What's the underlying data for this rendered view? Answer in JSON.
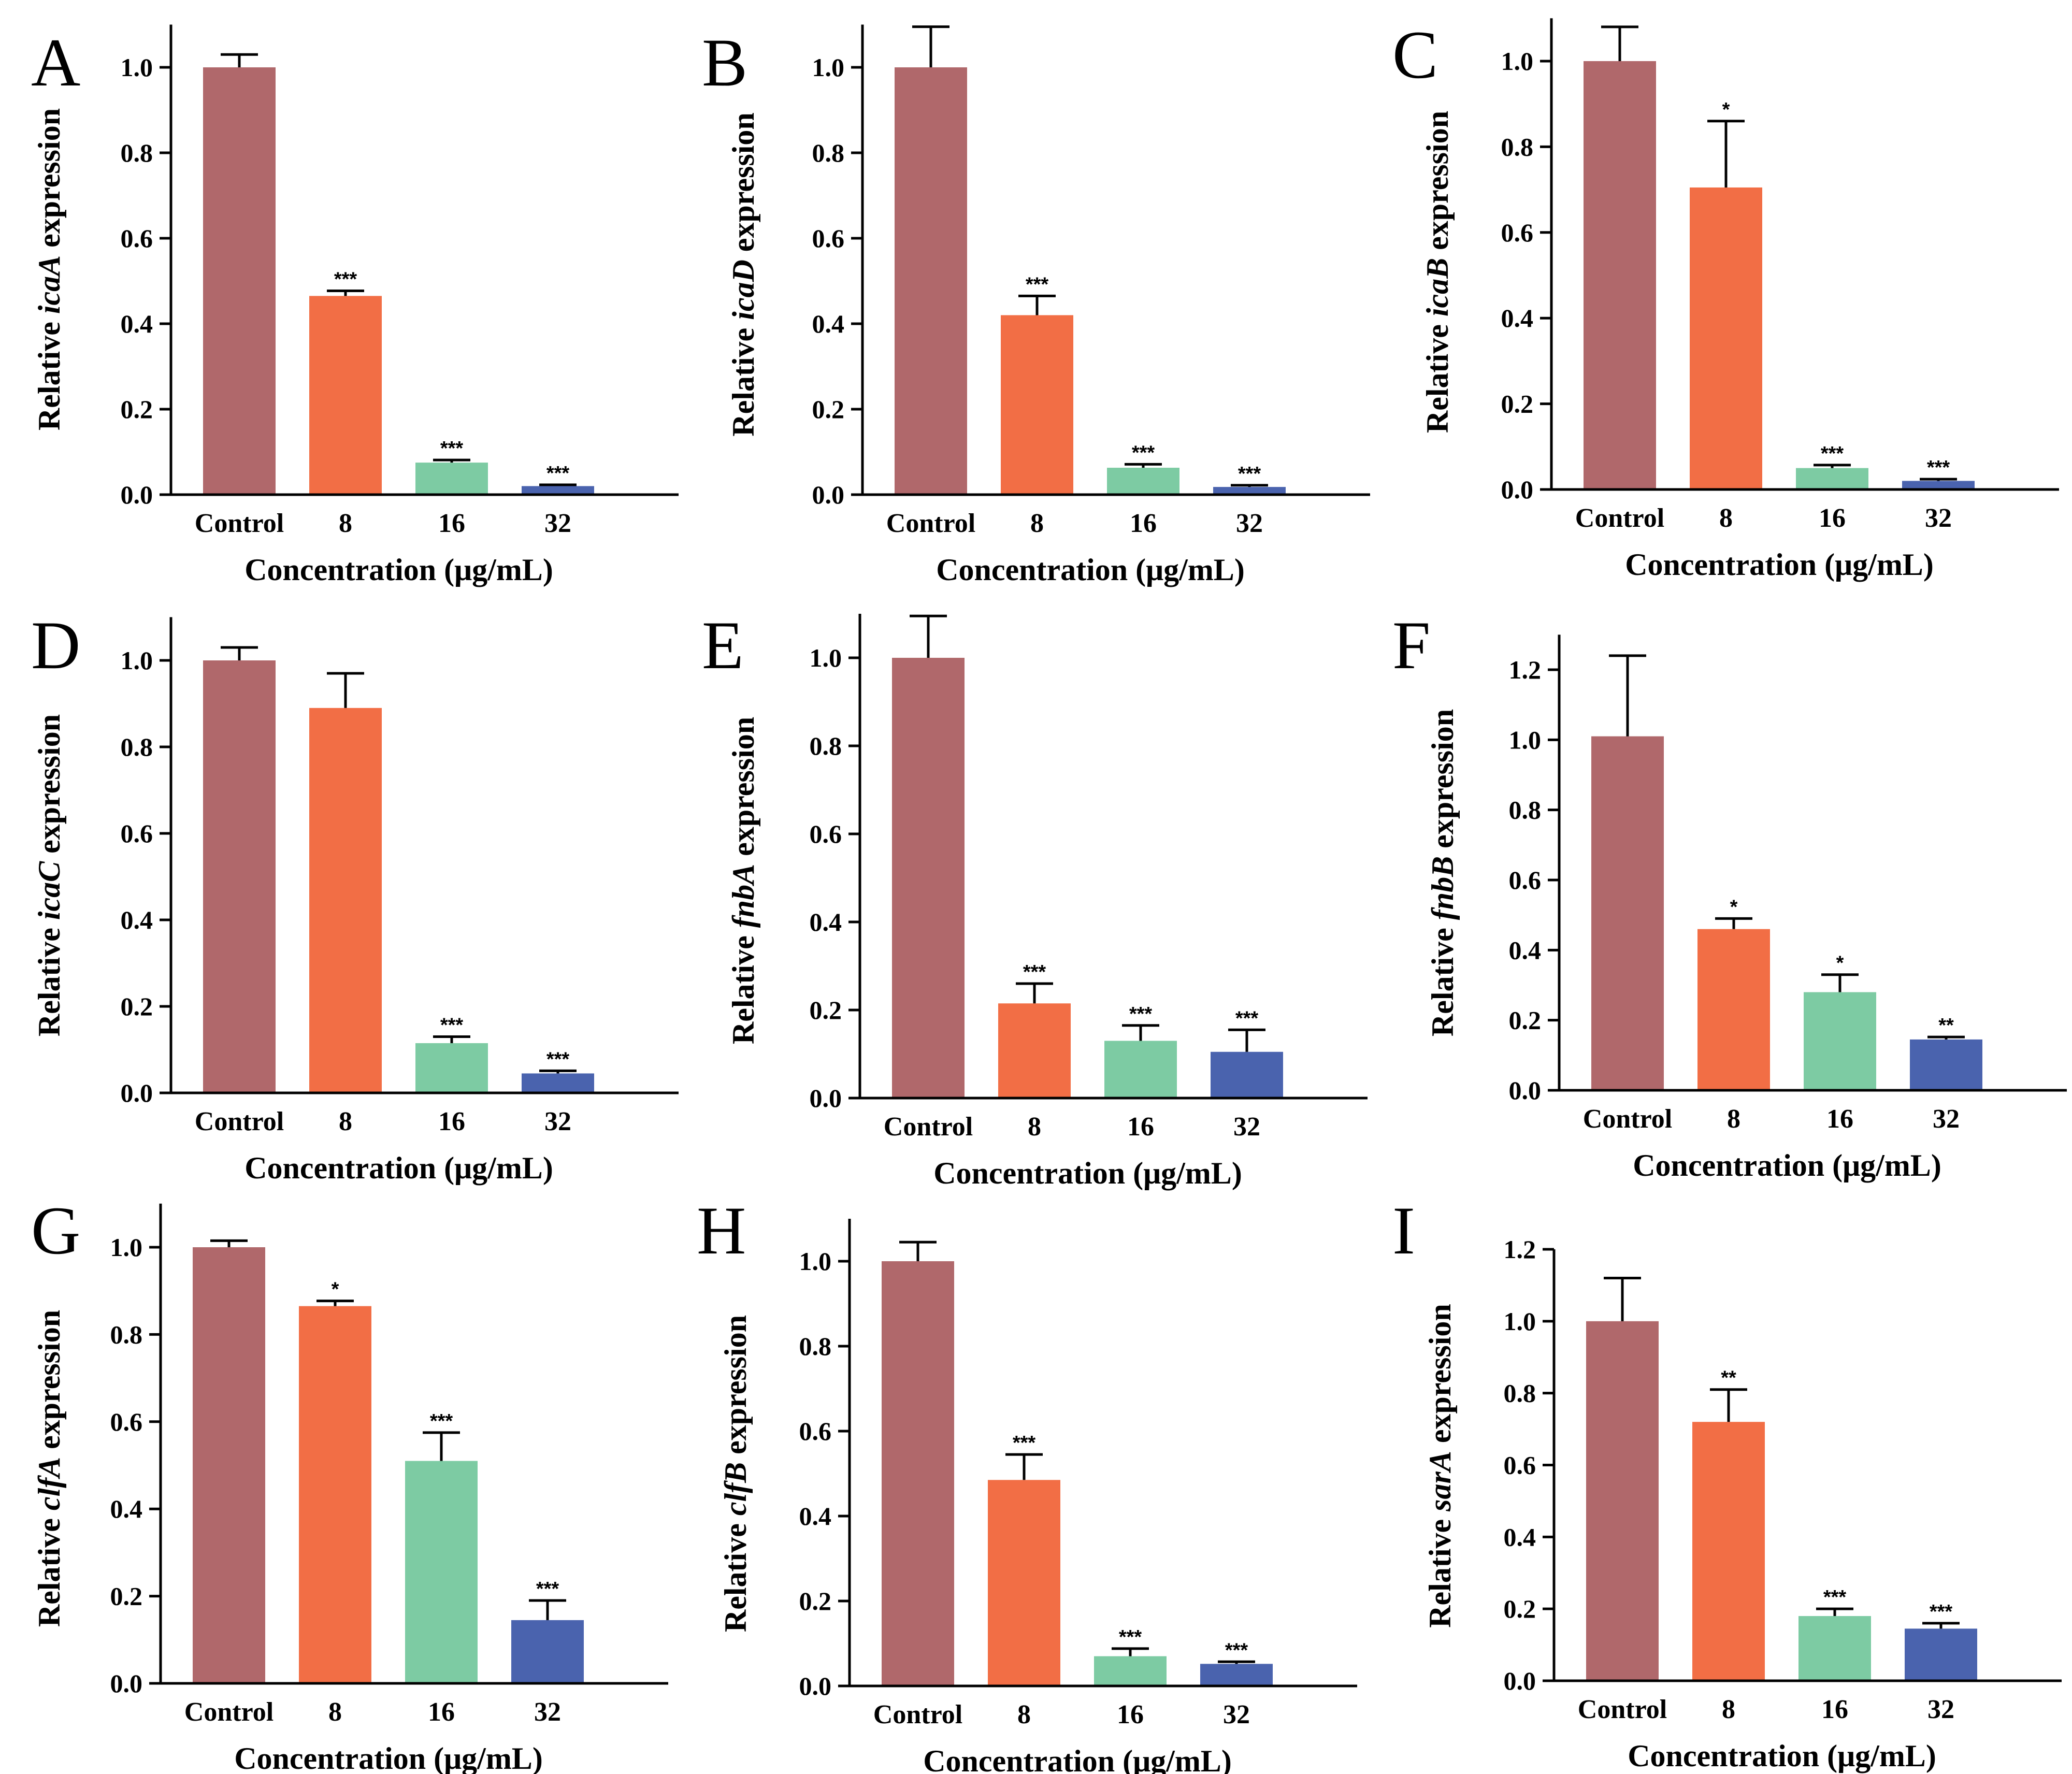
{
  "colors": {
    "control": "#B0686B",
    "c8": "#F26E45",
    "c16": "#7DCBA3",
    "c32": "#4A63AE"
  },
  "chart_data": [
    {
      "type": "bar",
      "panel": "A",
      "gene": "icaA",
      "ylabel_prefix": "Relative ",
      "ylabel_suffix": " expression",
      "xlabel": "Concentration (μg/mL)",
      "categories": [
        "Control",
        "8",
        "16",
        "32"
      ],
      "values": [
        1.0,
        0.465,
        0.075,
        0.02
      ],
      "errors": [
        0.03,
        0.012,
        0.006,
        0.003
      ],
      "significance": [
        "",
        "***",
        "***",
        "***"
      ],
      "ylim": [
        0,
        1.1
      ],
      "yticks": [
        "0.0",
        "0.2",
        "0.4",
        "0.6",
        "0.8",
        "1.0"
      ]
    },
    {
      "type": "bar",
      "panel": "B",
      "gene": "icaD",
      "ylabel_prefix": "Relative ",
      "ylabel_suffix": " expression",
      "xlabel": "Concentration (μg/mL)",
      "categories": [
        "Control",
        "8",
        "16",
        "32"
      ],
      "values": [
        1.0,
        0.42,
        0.063,
        0.018
      ],
      "errors": [
        0.095,
        0.045,
        0.008,
        0.004
      ],
      "significance": [
        "",
        "***",
        "***",
        "***"
      ],
      "ylim": [
        0,
        1.1
      ],
      "yticks": [
        "0.0",
        "0.2",
        "0.4",
        "0.6",
        "0.8",
        "1.0"
      ]
    },
    {
      "type": "bar",
      "panel": "C",
      "gene": "icaB",
      "ylabel_prefix": "Relative ",
      "ylabel_suffix": " expression",
      "xlabel": "Concentration (μg/mL)",
      "categories": [
        "Control",
        "8",
        "16",
        "32"
      ],
      "values": [
        1.0,
        0.705,
        0.05,
        0.02
      ],
      "errors": [
        0.08,
        0.155,
        0.007,
        0.004
      ],
      "significance": [
        "",
        "*",
        "***",
        "***"
      ],
      "ylim": [
        0,
        1.1
      ],
      "yticks": [
        "0.0",
        "0.2",
        "0.4",
        "0.6",
        "0.8",
        "1.0"
      ]
    },
    {
      "type": "bar",
      "panel": "D",
      "gene": "icaC",
      "ylabel_prefix": "Relative ",
      "ylabel_suffix": " expression",
      "xlabel": "Concentration (μg/mL)",
      "categories": [
        "Control",
        "8",
        "16",
        "32"
      ],
      "values": [
        1.0,
        0.89,
        0.115,
        0.045
      ],
      "errors": [
        0.03,
        0.08,
        0.015,
        0.006
      ],
      "significance": [
        "",
        "",
        "***",
        "***"
      ],
      "ylim": [
        0,
        1.1
      ],
      "yticks": [
        "0.0",
        "0.2",
        "0.4",
        "0.6",
        "0.8",
        "1.0"
      ]
    },
    {
      "type": "bar",
      "panel": "E",
      "gene": "fnbA",
      "ylabel_prefix": "Relative ",
      "ylabel_suffix": " expression",
      "xlabel": "Concentration (μg/mL)",
      "categories": [
        "Control",
        "8",
        "16",
        "32"
      ],
      "values": [
        1.0,
        0.215,
        0.13,
        0.105
      ],
      "errors": [
        0.095,
        0.045,
        0.035,
        0.05
      ],
      "significance": [
        "",
        "***",
        "***",
        "***"
      ],
      "ylim": [
        0,
        1.1
      ],
      "yticks": [
        "0.0",
        "0.2",
        "0.4",
        "0.6",
        "0.8",
        "1.0"
      ]
    },
    {
      "type": "bar",
      "panel": "F",
      "gene": "fnbB",
      "ylabel_prefix": "Relative ",
      "ylabel_suffix": " expression",
      "xlabel": "Concentration (μg/mL)",
      "categories": [
        "Control",
        "8",
        "16",
        "32"
      ],
      "values": [
        1.01,
        0.46,
        0.28,
        0.145
      ],
      "errors": [
        0.23,
        0.03,
        0.05,
        0.007
      ],
      "significance": [
        "",
        "*",
        "*",
        "**"
      ],
      "ylim": [
        0,
        1.3
      ],
      "yticks": [
        "0.0",
        "0.2",
        "0.4",
        "0.6",
        "0.8",
        "1.0",
        "1.2"
      ]
    },
    {
      "type": "bar",
      "panel": "G",
      "gene": "clfA",
      "ylabel_prefix": "Relative ",
      "ylabel_suffix": " expression",
      "xlabel": "Concentration (μg/mL)",
      "categories": [
        "Control",
        "8",
        "16",
        "32"
      ],
      "values": [
        1.0,
        0.865,
        0.51,
        0.145
      ],
      "errors": [
        0.015,
        0.012,
        0.065,
        0.045
      ],
      "significance": [
        "",
        "*",
        "***",
        "***"
      ],
      "ylim": [
        0,
        1.1
      ],
      "yticks": [
        "0.0",
        "0.2",
        "0.4",
        "0.6",
        "0.8",
        "1.0"
      ]
    },
    {
      "type": "bar",
      "panel": "H",
      "gene": "clfB",
      "ylabel_prefix": "Relative ",
      "ylabel_suffix": " expression",
      "xlabel": "Concentration (μg/mL)",
      "categories": [
        "Control",
        "8",
        "16",
        "32"
      ],
      "values": [
        1.0,
        0.485,
        0.07,
        0.052
      ],
      "errors": [
        0.045,
        0.06,
        0.018,
        0.005
      ],
      "significance": [
        "",
        "***",
        "***",
        "***"
      ],
      "ylim": [
        0,
        1.1
      ],
      "yticks": [
        "0.0",
        "0.2",
        "0.4",
        "0.6",
        "0.8",
        "1.0"
      ]
    },
    {
      "type": "bar",
      "panel": "I",
      "gene": "sarA",
      "ylabel_prefix": "Relative ",
      "ylabel_suffix": " expression",
      "xlabel": "Concentration (μg/mL)",
      "categories": [
        "Control",
        "8",
        "16",
        "32"
      ],
      "values": [
        1.0,
        0.72,
        0.18,
        0.145
      ],
      "errors": [
        0.12,
        0.09,
        0.02,
        0.015
      ],
      "significance": [
        "",
        "**",
        "***",
        "***"
      ],
      "ylim": [
        0,
        1.2
      ],
      "yticks": [
        "0.0",
        "0.2",
        "0.4",
        "0.6",
        "0.8",
        "1.0",
        "1.2"
      ]
    }
  ]
}
